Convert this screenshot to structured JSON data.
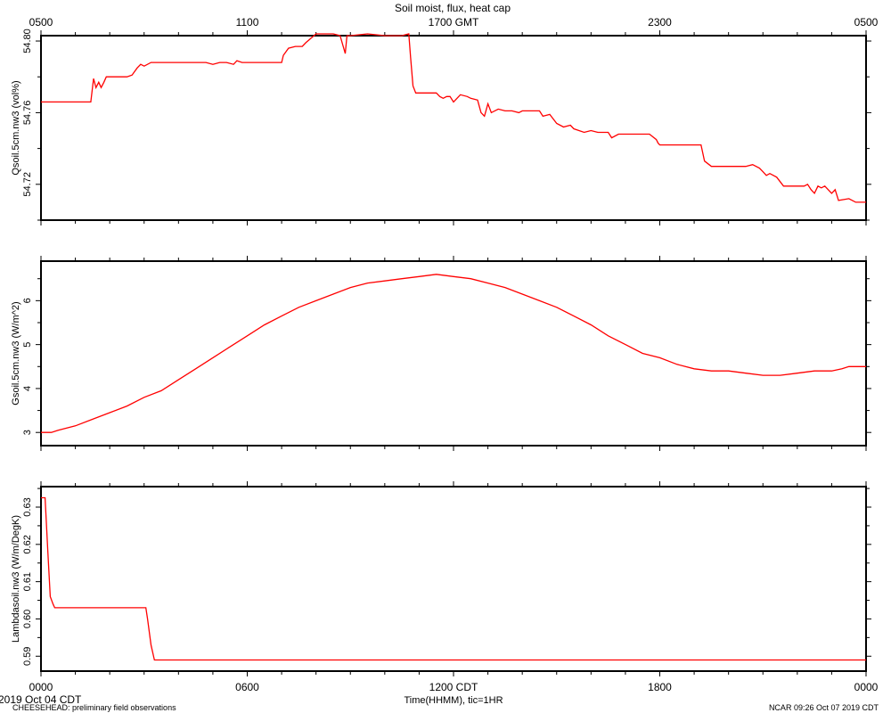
{
  "title": "Soil moist, flux, heat cap",
  "top_axis": {
    "ticks": [
      "0500",
      "1100",
      "1700 GMT",
      "2300",
      "0500"
    ]
  },
  "bottom_axis": {
    "ticks": [
      "0000",
      "0600",
      "1200 CDT",
      "1800",
      "0000"
    ],
    "label": "Time(HHMM), tic=1HR"
  },
  "footer": {
    "date_left": "2019 Oct 04 CDT",
    "project": "CHEESEHEAD: preliminary field observations",
    "stamp": "NCAR 09:26 Oct 07 2019 CDT"
  },
  "colors": {
    "line": "#ff0000",
    "axis": "#000000",
    "background": "#ffffff"
  },
  "chart_data": [
    {
      "type": "line",
      "ylabel": "Qsoil.5cm.nw3 (vol%)",
      "x_unit": "hours since 0000 CDT",
      "xlim": [
        0,
        24
      ],
      "ylim": [
        54.7,
        54.803
      ],
      "yticks": [
        54.72,
        54.76,
        54.8
      ],
      "ytick_labels": [
        "54.72",
        "54.76",
        "54.80"
      ],
      "grid": false,
      "series": [
        {
          "x": [
            0,
            1.45,
            1.53,
            1.6,
            1.68,
            1.75,
            1.83,
            1.9,
            2.0,
            2.5,
            2.65,
            2.8,
            2.9,
            3.0,
            3.2,
            4.0,
            4.8,
            5.0,
            5.2,
            5.4,
            5.6,
            5.7,
            5.85,
            6.0,
            6.5,
            7.0,
            7.05,
            7.2,
            7.4,
            7.6,
            7.7,
            8.0,
            8.4,
            8.5,
            8.7,
            8.85,
            8.9,
            9.0,
            9.5,
            10.0,
            10.5,
            10.7,
            10.75,
            10.82,
            10.9,
            11.5,
            11.6,
            11.7,
            11.8,
            11.9,
            12.0,
            12.2,
            12.4,
            12.5,
            12.7,
            12.8,
            12.9,
            13.0,
            13.1,
            13.3,
            13.5,
            13.7,
            13.9,
            14.0,
            14.5,
            14.6,
            14.8,
            15.0,
            15.2,
            15.4,
            15.5,
            15.8,
            16.0,
            16.2,
            16.5,
            16.6,
            16.8,
            17.0,
            17.5,
            17.7,
            17.9,
            17.95,
            18.0,
            18.5,
            19.0,
            19.2,
            19.3,
            19.5,
            19.8,
            20.0,
            20.5,
            20.7,
            20.9,
            21.0,
            21.1,
            21.2,
            21.4,
            21.6,
            22.0,
            22.2,
            22.3,
            22.4,
            22.5,
            22.6,
            22.7,
            22.8,
            23.0,
            23.1,
            23.2,
            23.5,
            23.6,
            23.7,
            23.8,
            24.0
          ],
          "y": [
            54.766,
            54.766,
            54.779,
            54.774,
            54.777,
            54.774,
            54.777,
            54.78,
            54.78,
            54.78,
            54.781,
            54.785,
            54.787,
            54.786,
            54.788,
            54.788,
            54.788,
            54.787,
            54.788,
            54.788,
            54.787,
            54.789,
            54.788,
            54.788,
            54.788,
            54.788,
            54.792,
            54.796,
            54.797,
            54.797,
            54.799,
            54.804,
            54.804,
            54.804,
            54.803,
            54.793,
            54.803,
            54.803,
            54.804,
            54.803,
            54.803,
            54.804,
            54.791,
            54.775,
            54.771,
            54.771,
            54.769,
            54.768,
            54.769,
            54.769,
            54.766,
            54.77,
            54.769,
            54.768,
            54.767,
            54.76,
            54.758,
            54.765,
            54.76,
            54.762,
            54.761,
            54.761,
            54.76,
            54.761,
            54.761,
            54.758,
            54.759,
            54.754,
            54.752,
            54.753,
            54.751,
            54.749,
            54.75,
            54.749,
            54.749,
            54.746,
            54.748,
            54.748,
            54.748,
            54.748,
            54.745,
            54.743,
            54.742,
            54.742,
            54.742,
            54.742,
            54.733,
            54.73,
            54.73,
            54.73,
            54.73,
            54.731,
            54.729,
            54.727,
            54.725,
            54.726,
            54.724,
            54.719,
            54.719,
            54.719,
            54.72,
            54.717,
            54.715,
            54.719,
            54.718,
            54.719,
            54.715,
            54.717,
            54.711,
            54.712,
            54.711,
            54.71,
            54.71,
            54.71
          ]
        }
      ]
    },
    {
      "type": "line",
      "ylabel": "Gsoil.5cm.nw3 (W/m^2)",
      "x_unit": "hours since 0000 CDT",
      "xlim": [
        0,
        24
      ],
      "ylim": [
        2.7,
        6.9
      ],
      "yticks": [
        3,
        4,
        5,
        6
      ],
      "ytick_labels": [
        "3",
        "4",
        "5",
        "6"
      ],
      "grid": false,
      "series": [
        {
          "x": [
            0,
            0.3,
            0.5,
            1.0,
            1.5,
            2.0,
            2.5,
            3.0,
            3.5,
            4.0,
            4.5,
            5.0,
            5.5,
            6.0,
            6.5,
            7.0,
            7.5,
            8.0,
            8.5,
            9.0,
            9.5,
            10.0,
            10.5,
            11.0,
            11.5,
            12.0,
            12.5,
            13.0,
            13.5,
            14.0,
            14.5,
            15.0,
            15.5,
            16.0,
            16.5,
            17.0,
            17.5,
            18.0,
            18.5,
            19.0,
            19.5,
            20.0,
            20.5,
            21.0,
            21.5,
            22.0,
            22.5,
            23.0,
            23.3,
            23.5,
            24.0
          ],
          "y": [
            3.0,
            3.0,
            3.05,
            3.15,
            3.3,
            3.45,
            3.6,
            3.8,
            3.95,
            4.2,
            4.45,
            4.7,
            4.95,
            5.2,
            5.45,
            5.65,
            5.85,
            6.0,
            6.15,
            6.3,
            6.4,
            6.45,
            6.5,
            6.55,
            6.6,
            6.55,
            6.5,
            6.4,
            6.3,
            6.15,
            6.0,
            5.85,
            5.65,
            5.45,
            5.2,
            5.0,
            4.8,
            4.7,
            4.55,
            4.45,
            4.4,
            4.4,
            4.35,
            4.3,
            4.3,
            4.35,
            4.4,
            4.4,
            4.45,
            4.5,
            4.5
          ]
        }
      ]
    },
    {
      "type": "line",
      "ylabel": "Lambdasoil.nw3 (W/m/DegK)",
      "x_unit": "hours since 0000 CDT",
      "xlim": [
        0,
        24
      ],
      "ylim": [
        0.586,
        0.6355
      ],
      "yticks": [
        0.59,
        0.6,
        0.61,
        0.62,
        0.63
      ],
      "ytick_labels": [
        "0.59",
        "0.60",
        "0.61",
        "0.62",
        "0.63"
      ],
      "grid": false,
      "series": [
        {
          "x": [
            0,
            0.12,
            0.2,
            0.27,
            0.35,
            0.4,
            3.0,
            3.05,
            3.1,
            3.2,
            3.3,
            3.4,
            24.0
          ],
          "y": [
            0.6325,
            0.6325,
            0.618,
            0.606,
            0.604,
            0.603,
            0.603,
            0.603,
            0.6,
            0.593,
            0.589,
            0.589,
            0.589
          ]
        }
      ]
    }
  ]
}
